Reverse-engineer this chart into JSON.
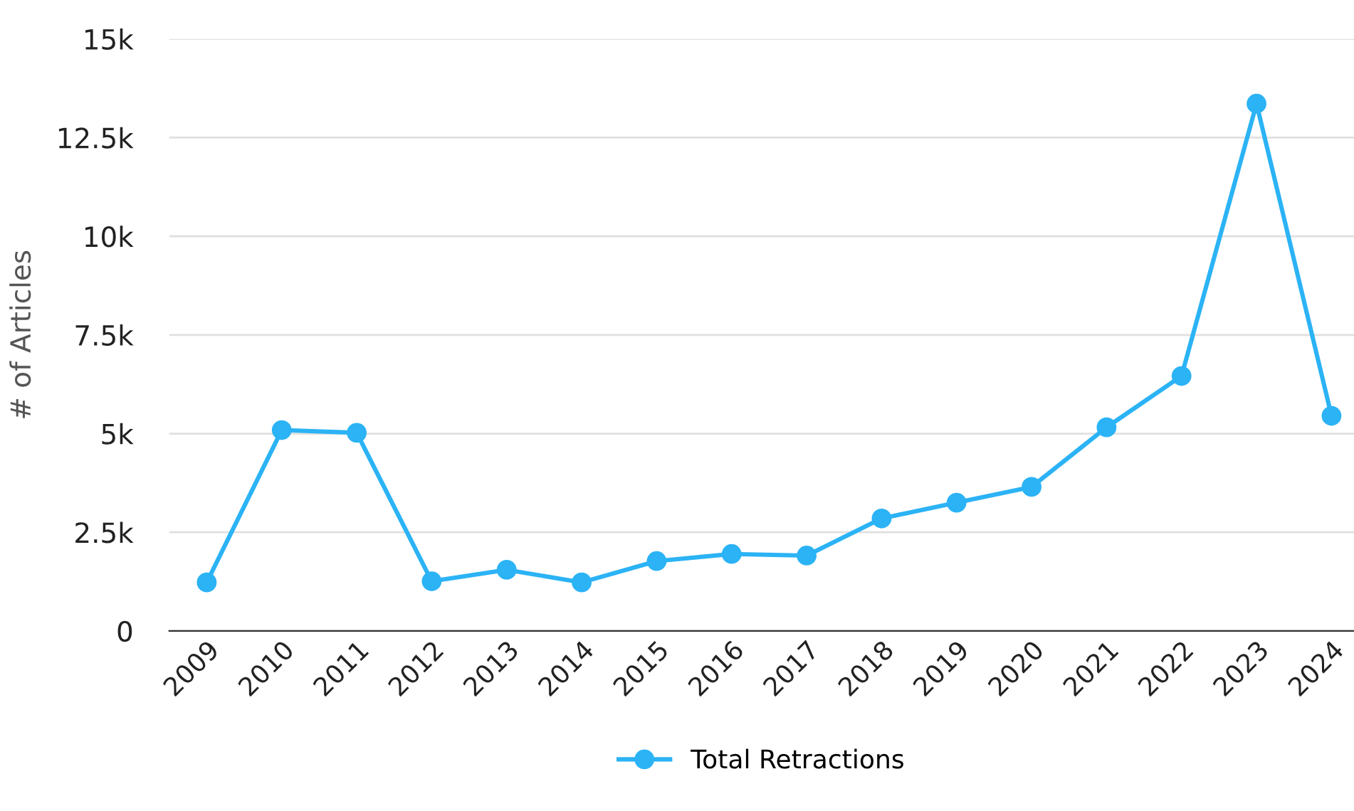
{
  "chart_data": {
    "type": "line",
    "ylabel": "# of Articles",
    "categories": [
      "2009",
      "2010",
      "2011",
      "2012",
      "2013",
      "2014",
      "2015",
      "2016",
      "2017",
      "2018",
      "2019",
      "2020",
      "2021",
      "2022",
      "2023",
      "2024"
    ],
    "series": [
      {
        "name": "Total Retractions",
        "color": "#2bb3f5",
        "values": [
          1230,
          5090,
          5020,
          1260,
          1550,
          1230,
          1770,
          1950,
          1910,
          2850,
          3250,
          3650,
          5160,
          6460,
          13360,
          5450
        ]
      }
    ],
    "ylim": [
      0,
      15000
    ],
    "yticks": [
      0,
      {
        "value": 2500,
        "label": "2.5k"
      },
      {
        "value": 5000,
        "label": "5k"
      },
      {
        "value": 7500,
        "label": "7.5k"
      },
      {
        "value": 10000,
        "label": "10k"
      },
      {
        "value": 12500,
        "label": "12.5k"
      },
      {
        "value": 15000,
        "label": "15k"
      }
    ],
    "grid": "y",
    "legend": "bottom",
    "marker": "circle",
    "line_style": "solid"
  }
}
